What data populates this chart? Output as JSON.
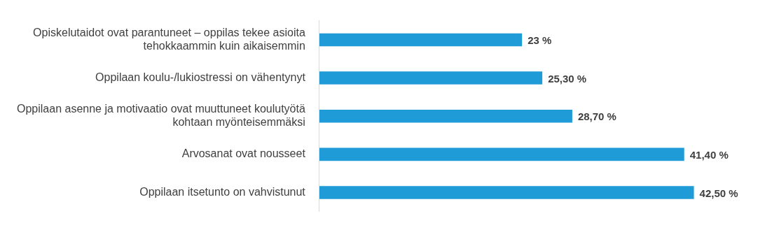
{
  "chart_data": {
    "type": "bar",
    "orientation": "horizontal",
    "categories": [
      "Opiskelutaidot ovat parantuneet – oppilas tekee asioita tehokkaammin kuin aikaisemmin",
      "Oppilaan koulu-/lukiostressi on vähentynyt",
      "Oppilaan asenne ja motivaatio ovat muuttuneet koulutyötä kohtaan myönteisemmäksi",
      "Arvosanat ovat nousseet",
      "Oppilaan itsetunto on vahvistunut"
    ],
    "values": [
      23,
      25.3,
      28.7,
      41.4,
      42.5
    ],
    "value_labels": [
      "23 %",
      "25,30 %",
      "28,70 %",
      "41,40 %",
      "42,50 %"
    ],
    "color": "#1f9bd7",
    "grid": false,
    "legend": false,
    "tick_labels": "y"
  }
}
